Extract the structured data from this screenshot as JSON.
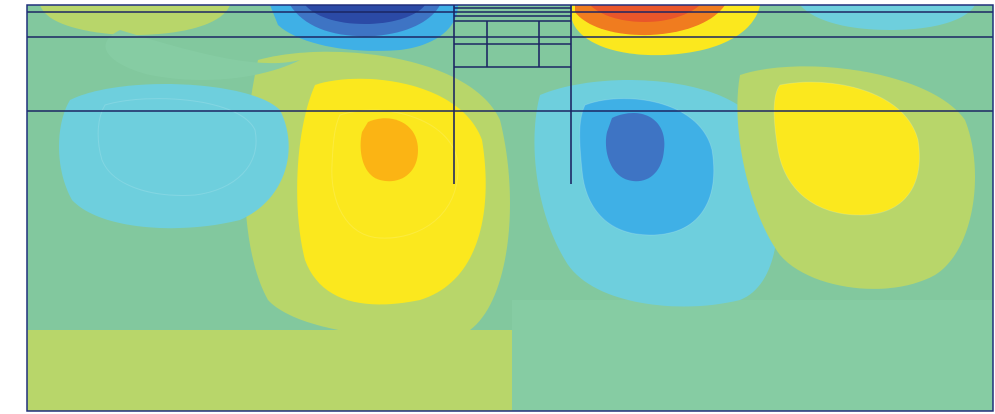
{
  "contour_plot": {
    "colormap": {
      "base": "#82c89e",
      "deep_blue": "#2b4aa6",
      "mid_blue": "#3e74c4",
      "blue": "#3fb0e6",
      "light_blue": "#6ecfdd",
      "light_green": "#86cca3",
      "green_yellow": "#b8d66a",
      "yellow": "#fbe81e",
      "orange": "#fbb414",
      "red": "#e9562a",
      "dark_orange": "#f07c1f"
    },
    "frame_color": "#1e2d7a",
    "structure_color": "#1b2462",
    "layer_count": 3,
    "wall_count": 2,
    "strut_levels": 4
  }
}
